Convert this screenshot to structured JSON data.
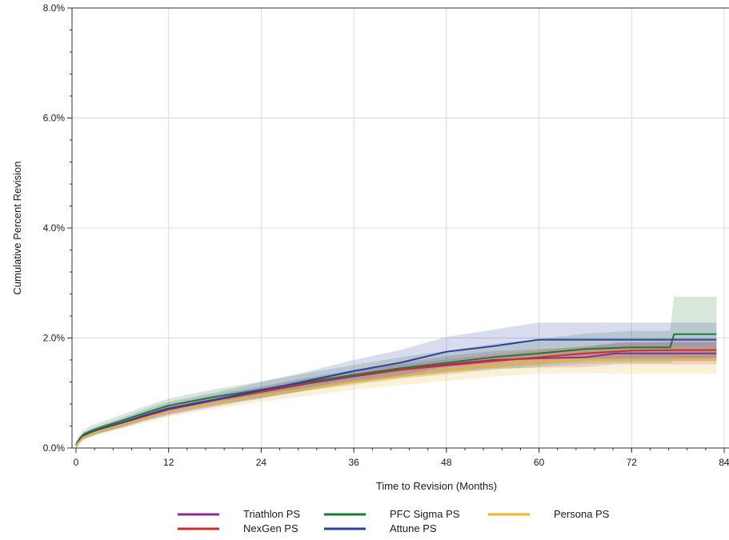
{
  "chart_data": {
    "type": "line",
    "xlabel": "Time to Revision (Months)",
    "ylabel": "Cumulative Percent Revision",
    "xlim": [
      0,
      84
    ],
    "ylim": [
      0,
      8
    ],
    "x_ticks": [
      0,
      12,
      24,
      36,
      48,
      60,
      72,
      84
    ],
    "x_tick_labels": [
      "0",
      "12",
      "24",
      "36",
      "48",
      "60",
      "72",
      "84"
    ],
    "y_ticks": [
      0,
      2,
      4,
      6,
      8
    ],
    "y_tick_labels": [
      "0.0%",
      "2.0%",
      "4.0%",
      "6.0%",
      "8.0%"
    ],
    "grid": true,
    "confidence_bands": true,
    "legend_position": "bottom",
    "series": [
      {
        "name": "Triathlon PS",
        "color": "#8b2e8e",
        "x": [
          0,
          0.5,
          1,
          2,
          3,
          6,
          9,
          12,
          18,
          24,
          30,
          36,
          42,
          48,
          54,
          60,
          66,
          70,
          72,
          78,
          83
        ],
        "y": [
          0.05,
          0.15,
          0.22,
          0.28,
          0.33,
          0.45,
          0.58,
          0.7,
          0.87,
          1.02,
          1.17,
          1.3,
          1.42,
          1.52,
          1.6,
          1.63,
          1.65,
          1.72,
          1.72,
          1.72,
          1.72
        ],
        "ci_lower": [
          0.0,
          0.1,
          0.17,
          0.22,
          0.27,
          0.38,
          0.5,
          0.6,
          0.77,
          0.92,
          1.06,
          1.18,
          1.29,
          1.37,
          1.44,
          1.46,
          1.47,
          1.52,
          1.52,
          1.52,
          1.52
        ],
        "ci_upper": [
          0.1,
          0.2,
          0.27,
          0.34,
          0.4,
          0.52,
          0.66,
          0.8,
          0.97,
          1.12,
          1.28,
          1.42,
          1.55,
          1.67,
          1.76,
          1.8,
          1.83,
          1.92,
          1.92,
          1.92,
          1.92
        ]
      },
      {
        "name": "NexGen PS",
        "color": "#d32a2a",
        "x": [
          0,
          0.5,
          1,
          2,
          3,
          6,
          9,
          12,
          18,
          24,
          30,
          36,
          42,
          48,
          54,
          60,
          66,
          72,
          78,
          83
        ],
        "y": [
          0.05,
          0.16,
          0.23,
          0.29,
          0.34,
          0.46,
          0.59,
          0.72,
          0.88,
          1.03,
          1.18,
          1.32,
          1.42,
          1.5,
          1.58,
          1.65,
          1.72,
          1.77,
          1.78,
          1.78
        ],
        "ci_lower": [
          0.0,
          0.11,
          0.18,
          0.24,
          0.29,
          0.41,
          0.53,
          0.66,
          0.82,
          0.96,
          1.1,
          1.23,
          1.32,
          1.39,
          1.46,
          1.52,
          1.58,
          1.62,
          1.62,
          1.62
        ],
        "ci_upper": [
          0.1,
          0.21,
          0.28,
          0.34,
          0.39,
          0.51,
          0.65,
          0.78,
          0.94,
          1.1,
          1.26,
          1.41,
          1.52,
          1.61,
          1.7,
          1.78,
          1.86,
          1.92,
          1.94,
          1.94
        ]
      },
      {
        "name": "PFC Sigma PS",
        "color": "#1f7a32",
        "x": [
          0,
          0.5,
          1,
          2,
          3,
          6,
          9,
          12,
          18,
          24,
          30,
          36,
          42,
          48,
          54,
          60,
          66,
          72,
          77,
          77.5,
          83
        ],
        "y": [
          0.06,
          0.17,
          0.25,
          0.31,
          0.36,
          0.5,
          0.64,
          0.77,
          0.93,
          1.06,
          1.2,
          1.33,
          1.45,
          1.55,
          1.65,
          1.72,
          1.8,
          1.83,
          1.83,
          2.07,
          2.07
        ],
        "ci_lower": [
          0.0,
          0.1,
          0.17,
          0.22,
          0.27,
          0.39,
          0.52,
          0.64,
          0.79,
          0.91,
          1.04,
          1.15,
          1.26,
          1.34,
          1.42,
          1.48,
          1.53,
          1.55,
          1.55,
          1.62,
          1.62
        ],
        "ci_upper": [
          0.12,
          0.25,
          0.33,
          0.41,
          0.46,
          0.61,
          0.76,
          0.9,
          1.07,
          1.21,
          1.36,
          1.51,
          1.65,
          1.77,
          1.89,
          1.98,
          2.08,
          2.13,
          2.13,
          2.75,
          2.75
        ]
      },
      {
        "name": "Attune PS",
        "color": "#2a3fa0",
        "x": [
          0,
          0.5,
          1,
          2,
          3,
          6,
          9,
          12,
          18,
          24,
          30,
          36,
          42,
          48,
          54,
          59,
          60,
          66,
          72,
          78,
          83
        ],
        "y": [
          0.05,
          0.15,
          0.22,
          0.28,
          0.33,
          0.46,
          0.6,
          0.72,
          0.88,
          1.05,
          1.22,
          1.4,
          1.55,
          1.75,
          1.85,
          1.95,
          1.97,
          1.97,
          1.97,
          1.97,
          1.97
        ],
        "ci_lower": [
          0.0,
          0.09,
          0.16,
          0.21,
          0.26,
          0.37,
          0.49,
          0.6,
          0.75,
          0.9,
          1.05,
          1.2,
          1.32,
          1.48,
          1.55,
          1.62,
          1.63,
          1.63,
          1.63,
          1.63,
          1.63
        ],
        "ci_upper": [
          0.1,
          0.21,
          0.28,
          0.35,
          0.4,
          0.55,
          0.71,
          0.84,
          1.01,
          1.2,
          1.39,
          1.6,
          1.78,
          2.02,
          2.15,
          2.26,
          2.28,
          2.28,
          2.28,
          2.28,
          2.28
        ]
      },
      {
        "name": "Persona PS",
        "color": "#f0b428",
        "x": [
          0,
          0.5,
          1,
          2,
          3,
          6,
          9,
          12,
          18,
          24,
          30,
          36,
          42,
          48,
          54,
          60,
          66,
          72,
          78,
          83
        ],
        "y": [
          0.04,
          0.13,
          0.2,
          0.26,
          0.31,
          0.43,
          0.55,
          0.67,
          0.82,
          0.96,
          1.08,
          1.2,
          1.3,
          1.4,
          1.5,
          1.57,
          1.6,
          1.6,
          1.6,
          1.6
        ],
        "ci_lower": [
          0.0,
          0.08,
          0.14,
          0.2,
          0.24,
          0.35,
          0.46,
          0.57,
          0.71,
          0.84,
          0.95,
          1.06,
          1.14,
          1.22,
          1.3,
          1.35,
          1.36,
          1.35,
          1.35,
          1.35
        ],
        "ci_upper": [
          0.08,
          0.18,
          0.26,
          0.32,
          0.38,
          0.51,
          0.64,
          0.77,
          0.93,
          1.08,
          1.21,
          1.34,
          1.46,
          1.58,
          1.7,
          1.79,
          1.84,
          1.85,
          1.85,
          1.85
        ]
      }
    ]
  }
}
